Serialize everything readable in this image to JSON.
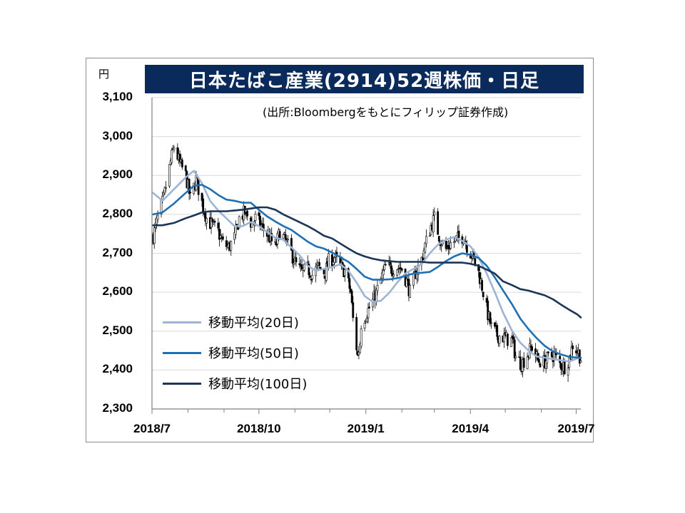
{
  "title": "日本たばこ産業(2914)52週株価・日足",
  "source": "(出所:Bloombergをもとにフィリップ証券作成)",
  "unit": "円",
  "chart_data": {
    "type": "candlestick+line",
    "title": "日本たばこ産業(2914)52週株価・日足",
    "ylabel": "円",
    "ylim": [
      2300,
      3100
    ],
    "yticks": [
      "2,300",
      "2,400",
      "2,500",
      "2,600",
      "2,700",
      "2,800",
      "2,900",
      "3,000",
      "3,100"
    ],
    "xticks": [
      "2018/7",
      "2018/10",
      "2019/1",
      "2019/4",
      "2019/7"
    ],
    "xrange": [
      "2018-07-01",
      "2019-07-05"
    ],
    "grid": "horizontal",
    "legend_position": "bottom-left",
    "price_daily_close": [
      [
        "2018-07-02",
        2745
      ],
      [
        "2018-07-06",
        2790
      ],
      [
        "2018-07-11",
        2840
      ],
      [
        "2018-07-17",
        2935
      ],
      [
        "2018-07-20",
        2975
      ],
      [
        "2018-07-25",
        2930
      ],
      [
        "2018-07-30",
        2900
      ],
      [
        "2018-08-03",
        2840
      ],
      [
        "2018-08-08",
        2890
      ],
      [
        "2018-08-13",
        2830
      ],
      [
        "2018-08-17",
        2790
      ],
      [
        "2018-08-22",
        2770
      ],
      [
        "2018-08-27",
        2755
      ],
      [
        "2018-08-31",
        2725
      ],
      [
        "2018-09-05",
        2715
      ],
      [
        "2018-09-10",
        2740
      ],
      [
        "2018-09-14",
        2790
      ],
      [
        "2018-09-19",
        2805
      ],
      [
        "2018-09-25",
        2775
      ],
      [
        "2018-09-28",
        2790
      ],
      [
        "2018-10-03",
        2770
      ],
      [
        "2018-10-09",
        2745
      ],
      [
        "2018-10-15",
        2715
      ],
      [
        "2018-10-19",
        2755
      ],
      [
        "2018-10-24",
        2730
      ],
      [
        "2018-10-29",
        2700
      ],
      [
        "2018-11-02",
        2670
      ],
      [
        "2018-11-07",
        2650
      ],
      [
        "2018-11-12",
        2660
      ],
      [
        "2018-11-16",
        2645
      ],
      [
        "2018-11-21",
        2665
      ],
      [
        "2018-11-27",
        2650
      ],
      [
        "2018-11-30",
        2680
      ],
      [
        "2018-12-05",
        2690
      ],
      [
        "2018-12-10",
        2665
      ],
      [
        "2018-12-14",
        2655
      ],
      [
        "2018-12-19",
        2600
      ],
      [
        "2018-12-21",
        2530
      ],
      [
        "2018-12-25",
        2435
      ],
      [
        "2018-12-27",
        2470
      ],
      [
        "2018-12-28",
        2520
      ],
      [
        "2019-01-04",
        2560
      ],
      [
        "2019-01-09",
        2590
      ],
      [
        "2019-01-15",
        2640
      ],
      [
        "2019-01-18",
        2665
      ],
      [
        "2019-01-23",
        2660
      ],
      [
        "2019-01-28",
        2665
      ],
      [
        "2019-02-01",
        2660
      ],
      [
        "2019-02-06",
        2620
      ],
      [
        "2019-02-08",
        2600
      ],
      [
        "2019-02-13",
        2650
      ],
      [
        "2019-02-18",
        2685
      ],
      [
        "2019-02-21",
        2720
      ],
      [
        "2019-02-26",
        2770
      ],
      [
        "2019-03-01",
        2790
      ],
      [
        "2019-03-06",
        2735
      ],
      [
        "2019-03-11",
        2710
      ],
      [
        "2019-03-15",
        2725
      ],
      [
        "2019-03-20",
        2735
      ],
      [
        "2019-03-26",
        2745
      ],
      [
        "2019-03-29",
        2720
      ],
      [
        "2019-04-03",
        2690
      ],
      [
        "2019-04-08",
        2650
      ],
      [
        "2019-04-11",
        2615
      ],
      [
        "2019-04-15",
        2555
      ],
      [
        "2019-04-19",
        2510
      ],
      [
        "2019-04-24",
        2490
      ],
      [
        "2019-05-07",
        2475
      ],
      [
        "2019-05-10",
        2435
      ],
      [
        "2019-05-15",
        2415
      ],
      [
        "2019-05-20",
        2440
      ],
      [
        "2019-05-24",
        2460
      ],
      [
        "2019-05-29",
        2425
      ],
      [
        "2019-06-03",
        2420
      ],
      [
        "2019-06-07",
        2430
      ],
      [
        "2019-06-12",
        2440
      ],
      [
        "2019-06-17",
        2415
      ],
      [
        "2019-06-21",
        2410
      ],
      [
        "2019-06-25",
        2430
      ],
      [
        "2019-06-28",
        2465
      ],
      [
        "2019-07-03",
        2445
      ],
      [
        "2019-07-05",
        2430
      ]
    ],
    "series": [
      {
        "name": "移動平均(20日)",
        "color": "#9db4d4",
        "values": [
          [
            "2018-07-02",
            2855
          ],
          [
            "2018-07-10",
            2835
          ],
          [
            "2018-07-20",
            2865
          ],
          [
            "2018-07-30",
            2895
          ],
          [
            "2018-08-06",
            2912
          ],
          [
            "2018-08-13",
            2880
          ],
          [
            "2018-08-20",
            2835
          ],
          [
            "2018-08-27",
            2810
          ],
          [
            "2018-09-03",
            2790
          ],
          [
            "2018-09-10",
            2770
          ],
          [
            "2018-09-17",
            2770
          ],
          [
            "2018-09-24",
            2780
          ],
          [
            "2018-10-01",
            2770
          ],
          [
            "2018-10-08",
            2755
          ],
          [
            "2018-10-15",
            2740
          ],
          [
            "2018-10-22",
            2735
          ],
          [
            "2018-10-29",
            2715
          ],
          [
            "2018-11-05",
            2695
          ],
          [
            "2018-11-12",
            2668
          ],
          [
            "2018-11-19",
            2655
          ],
          [
            "2018-11-26",
            2660
          ],
          [
            "2018-12-03",
            2665
          ],
          [
            "2018-12-10",
            2672
          ],
          [
            "2018-12-17",
            2655
          ],
          [
            "2018-12-24",
            2625
          ],
          [
            "2018-12-31",
            2590
          ],
          [
            "2019-01-07",
            2575
          ],
          [
            "2019-01-14",
            2578
          ],
          [
            "2019-01-21",
            2598
          ],
          [
            "2019-01-28",
            2625
          ],
          [
            "2019-02-04",
            2648
          ],
          [
            "2019-02-11",
            2660
          ],
          [
            "2019-02-18",
            2672
          ],
          [
            "2019-02-25",
            2700
          ],
          [
            "2019-03-04",
            2722
          ],
          [
            "2019-03-11",
            2735
          ],
          [
            "2019-03-18",
            2742
          ],
          [
            "2019-03-25",
            2732
          ],
          [
            "2019-04-01",
            2718
          ],
          [
            "2019-04-08",
            2690
          ],
          [
            "2019-04-15",
            2648
          ],
          [
            "2019-04-22",
            2600
          ],
          [
            "2019-04-29",
            2548
          ],
          [
            "2019-05-07",
            2500
          ],
          [
            "2019-05-14",
            2470
          ],
          [
            "2019-05-21",
            2450
          ],
          [
            "2019-05-28",
            2435
          ],
          [
            "2019-06-04",
            2432
          ],
          [
            "2019-06-11",
            2428
          ],
          [
            "2019-06-18",
            2425
          ],
          [
            "2019-06-25",
            2422
          ],
          [
            "2019-07-02",
            2430
          ],
          [
            "2019-07-05",
            2432
          ]
        ]
      },
      {
        "name": "移動平均(50日)",
        "color": "#1f6fb5",
        "values": [
          [
            "2018-07-02",
            2800
          ],
          [
            "2018-07-10",
            2805
          ],
          [
            "2018-07-20",
            2828
          ],
          [
            "2018-07-30",
            2855
          ],
          [
            "2018-08-06",
            2873
          ],
          [
            "2018-08-13",
            2876
          ],
          [
            "2018-08-20",
            2865
          ],
          [
            "2018-08-27",
            2850
          ],
          [
            "2018-09-03",
            2838
          ],
          [
            "2018-09-10",
            2835
          ],
          [
            "2018-09-17",
            2830
          ],
          [
            "2018-09-24",
            2830
          ],
          [
            "2018-10-01",
            2812
          ],
          [
            "2018-10-08",
            2795
          ],
          [
            "2018-10-15",
            2782
          ],
          [
            "2018-10-22",
            2770
          ],
          [
            "2018-10-29",
            2760
          ],
          [
            "2018-11-05",
            2745
          ],
          [
            "2018-11-12",
            2730
          ],
          [
            "2018-11-19",
            2718
          ],
          [
            "2018-11-26",
            2712
          ],
          [
            "2018-12-03",
            2702
          ],
          [
            "2018-12-10",
            2690
          ],
          [
            "2018-12-17",
            2678
          ],
          [
            "2018-12-24",
            2660
          ],
          [
            "2018-12-31",
            2640
          ],
          [
            "2019-01-07",
            2632
          ],
          [
            "2019-01-14",
            2632
          ],
          [
            "2019-01-21",
            2633
          ],
          [
            "2019-01-28",
            2636
          ],
          [
            "2019-02-04",
            2642
          ],
          [
            "2019-02-11",
            2648
          ],
          [
            "2019-02-18",
            2650
          ],
          [
            "2019-02-25",
            2652
          ],
          [
            "2019-03-04",
            2665
          ],
          [
            "2019-03-11",
            2680
          ],
          [
            "2019-03-18",
            2692
          ],
          [
            "2019-03-25",
            2700
          ],
          [
            "2019-04-01",
            2696
          ],
          [
            "2019-04-08",
            2688
          ],
          [
            "2019-04-15",
            2668
          ],
          [
            "2019-04-22",
            2638
          ],
          [
            "2019-04-29",
            2605
          ],
          [
            "2019-05-07",
            2568
          ],
          [
            "2019-05-14",
            2532
          ],
          [
            "2019-05-21",
            2505
          ],
          [
            "2019-05-28",
            2482
          ],
          [
            "2019-06-04",
            2462
          ],
          [
            "2019-06-11",
            2448
          ],
          [
            "2019-06-18",
            2440
          ],
          [
            "2019-06-25",
            2434
          ],
          [
            "2019-07-02",
            2432
          ],
          [
            "2019-07-05",
            2432
          ]
        ]
      },
      {
        "name": "移動平均(100日)",
        "color": "#1c3557",
        "values": [
          [
            "2018-07-02",
            2772
          ],
          [
            "2018-07-10",
            2772
          ],
          [
            "2018-07-20",
            2778
          ],
          [
            "2018-07-30",
            2790
          ],
          [
            "2018-08-06",
            2797
          ],
          [
            "2018-08-13",
            2805
          ],
          [
            "2018-08-20",
            2808
          ],
          [
            "2018-08-27",
            2808
          ],
          [
            "2018-09-03",
            2808
          ],
          [
            "2018-09-10",
            2810
          ],
          [
            "2018-09-17",
            2812
          ],
          [
            "2018-09-24",
            2815
          ],
          [
            "2018-10-01",
            2818
          ],
          [
            "2018-10-08",
            2818
          ],
          [
            "2018-10-15",
            2812
          ],
          [
            "2018-10-22",
            2800
          ],
          [
            "2018-10-29",
            2790
          ],
          [
            "2018-11-05",
            2780
          ],
          [
            "2018-11-12",
            2770
          ],
          [
            "2018-11-19",
            2758
          ],
          [
            "2018-11-26",
            2745
          ],
          [
            "2018-12-03",
            2738
          ],
          [
            "2018-12-10",
            2725
          ],
          [
            "2018-12-17",
            2712
          ],
          [
            "2018-12-24",
            2700
          ],
          [
            "2018-12-31",
            2692
          ],
          [
            "2019-01-07",
            2686
          ],
          [
            "2019-01-14",
            2682
          ],
          [
            "2019-01-21",
            2680
          ],
          [
            "2019-01-28",
            2678
          ],
          [
            "2019-02-04",
            2678
          ],
          [
            "2019-02-11",
            2678
          ],
          [
            "2019-02-18",
            2678
          ],
          [
            "2019-02-25",
            2676
          ],
          [
            "2019-03-04",
            2676
          ],
          [
            "2019-03-11",
            2676
          ],
          [
            "2019-03-18",
            2676
          ],
          [
            "2019-03-25",
            2676
          ],
          [
            "2019-04-01",
            2673
          ],
          [
            "2019-04-08",
            2668
          ],
          [
            "2019-04-15",
            2658
          ],
          [
            "2019-04-22",
            2648
          ],
          [
            "2019-04-29",
            2628
          ],
          [
            "2019-05-07",
            2618
          ],
          [
            "2019-05-14",
            2608
          ],
          [
            "2019-05-21",
            2604
          ],
          [
            "2019-05-28",
            2598
          ],
          [
            "2019-06-04",
            2592
          ],
          [
            "2019-06-11",
            2582
          ],
          [
            "2019-06-18",
            2568
          ],
          [
            "2019-06-25",
            2555
          ],
          [
            "2019-07-02",
            2543
          ],
          [
            "2019-07-05",
            2535
          ]
        ]
      }
    ]
  },
  "colors": {
    "title_bg": "#0a2a5c",
    "candle": "#000000",
    "grid": "#d9d9d9"
  }
}
